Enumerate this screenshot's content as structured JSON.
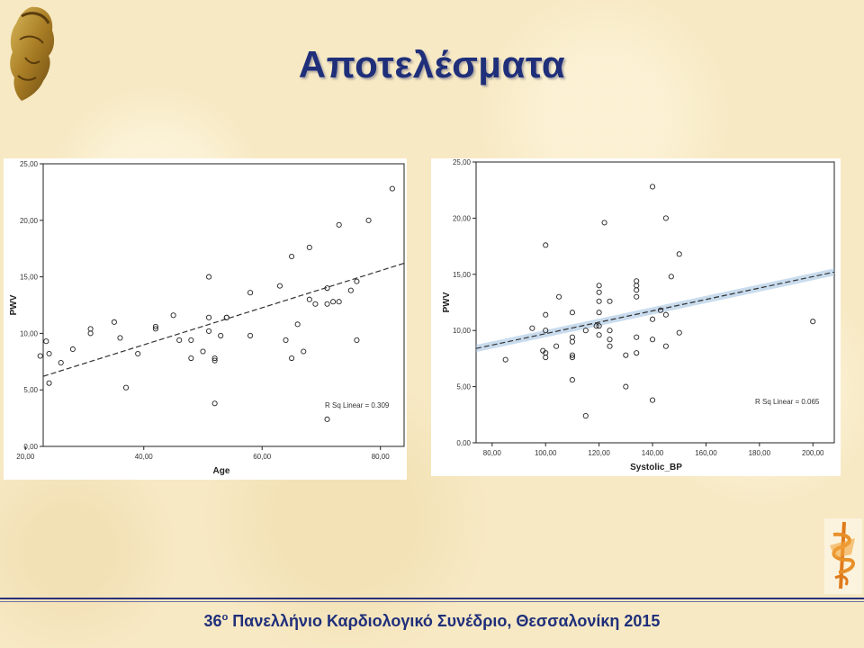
{
  "slide": {
    "title": "Αποτελέσματα",
    "footer_number": "36",
    "footer_ordinal": "ο",
    "footer_text": " Πανελλήνιο Καρδιολογικό Συνέδριο, Θεσσαλονίκη 2015"
  },
  "colors": {
    "title": "#1f2f7a",
    "footer": "#1f2f7a",
    "fit_line": "#333333",
    "ci_band": "#9cc0e0"
  },
  "icons": [
    "athena-helmet-logo",
    "asclepius-staff-logo"
  ],
  "chart_data": [
    {
      "type": "scatter",
      "xlabel": "Age",
      "ylabel": "PWV",
      "xlim": [
        23,
        84
      ],
      "ylim": [
        0,
        25
      ],
      "xticks": [
        "20,00",
        "40,00",
        "60,00",
        "80,00"
      ],
      "yticks": [
        "0,00",
        "5,00",
        "10,00",
        "15,00",
        "20,00",
        "25,00"
      ],
      "xtick_values": [
        20,
        40,
        60,
        80
      ],
      "ytick_values": [
        0,
        5,
        10,
        15,
        20,
        25
      ],
      "grid": false,
      "annotation": "R Sq Linear = 0.309",
      "fit_line": {
        "style": "dashed",
        "x": [
          23,
          84
        ],
        "y": [
          6.2,
          16.2
        ]
      },
      "points": [
        [
          22.5,
          8.0
        ],
        [
          23.5,
          9.3
        ],
        [
          24,
          8.2
        ],
        [
          24,
          5.6
        ],
        [
          26,
          7.4
        ],
        [
          28,
          8.6
        ],
        [
          31,
          10.4
        ],
        [
          31,
          10.0
        ],
        [
          35,
          11.0
        ],
        [
          36,
          9.6
        ],
        [
          37,
          5.2
        ],
        [
          39,
          8.2
        ],
        [
          42,
          10.6
        ],
        [
          42,
          10.4
        ],
        [
          45,
          11.6
        ],
        [
          46,
          9.4
        ],
        [
          48,
          9.4
        ],
        [
          48,
          7.8
        ],
        [
          50,
          8.4
        ],
        [
          51,
          15.0
        ],
        [
          51,
          11.4
        ],
        [
          51,
          10.2
        ],
        [
          52,
          7.8
        ],
        [
          52,
          7.6
        ],
        [
          52,
          3.8
        ],
        [
          53,
          9.8
        ],
        [
          54,
          11.4
        ],
        [
          54,
          11.4
        ],
        [
          58,
          9.8
        ],
        [
          58,
          13.6
        ],
        [
          63,
          14.2
        ],
        [
          64,
          9.4
        ],
        [
          65,
          16.8
        ],
        [
          65,
          7.8
        ],
        [
          66,
          10.8
        ],
        [
          67,
          8.4
        ],
        [
          68,
          17.6
        ],
        [
          68,
          13.0
        ],
        [
          69,
          12.6
        ],
        [
          71,
          14.0
        ],
        [
          71,
          12.6
        ],
        [
          71,
          2.4
        ],
        [
          72,
          12.8
        ],
        [
          73,
          12.8
        ],
        [
          73,
          19.6
        ],
        [
          75,
          13.8
        ],
        [
          76,
          14.6
        ],
        [
          76,
          9.4
        ],
        [
          78,
          20.0
        ],
        [
          82,
          22.8
        ]
      ]
    },
    {
      "type": "scatter",
      "xlabel": "Systolic_BP",
      "ylabel": "PWV",
      "xlim": [
        74,
        208
      ],
      "ylim": [
        0,
        25
      ],
      "xticks": [
        "80,00",
        "100,00",
        "120,00",
        "140,00",
        "160,00",
        "180,00",
        "200,00"
      ],
      "yticks": [
        "0,00",
        "5,00",
        "10,00",
        "15,00",
        "20,00",
        "25,00"
      ],
      "xtick_values": [
        80,
        100,
        120,
        140,
        160,
        180,
        200
      ],
      "ytick_values": [
        0,
        5,
        10,
        15,
        20,
        25
      ],
      "grid": false,
      "annotation": "R Sq Linear = 0.065",
      "fit_line": {
        "style": "dashed",
        "confidence_band": true,
        "x": [
          74,
          208
        ],
        "y": [
          8.4,
          15.2
        ]
      },
      "points": [
        [
          85,
          7.4
        ],
        [
          95,
          10.2
        ],
        [
          99,
          8.2
        ],
        [
          100,
          17.6
        ],
        [
          100,
          10.0
        ],
        [
          100,
          8.0
        ],
        [
          100,
          7.6
        ],
        [
          100,
          11.4
        ],
        [
          104,
          8.6
        ],
        [
          105,
          13.0
        ],
        [
          110,
          7.8
        ],
        [
          110,
          7.6
        ],
        [
          110,
          11.6
        ],
        [
          110,
          9.4
        ],
        [
          110,
          9.0
        ],
        [
          110,
          5.6
        ],
        [
          115,
          2.4
        ],
        [
          115,
          10.0
        ],
        [
          119,
          10.4
        ],
        [
          120,
          14.0
        ],
        [
          120,
          13.4
        ],
        [
          120,
          12.6
        ],
        [
          120,
          11.6
        ],
        [
          120,
          10.4
        ],
        [
          120,
          9.6
        ],
        [
          122,
          19.6
        ],
        [
          124,
          12.6
        ],
        [
          124,
          10.0
        ],
        [
          124,
          9.2
        ],
        [
          124,
          8.6
        ],
        [
          130,
          5.0
        ],
        [
          130,
          7.8
        ],
        [
          134,
          14.4
        ],
        [
          134,
          14.0
        ],
        [
          134,
          13.6
        ],
        [
          134,
          13.0
        ],
        [
          134,
          9.4
        ],
        [
          134,
          8.0
        ],
        [
          140,
          22.8
        ],
        [
          140,
          11.0
        ],
        [
          140,
          9.2
        ],
        [
          140,
          3.8
        ],
        [
          143,
          11.8
        ],
        [
          145,
          20.0
        ],
        [
          145,
          11.4
        ],
        [
          145,
          8.6
        ],
        [
          147,
          14.8
        ],
        [
          150,
          16.8
        ],
        [
          150,
          9.8
        ],
        [
          200,
          10.8
        ]
      ]
    }
  ]
}
